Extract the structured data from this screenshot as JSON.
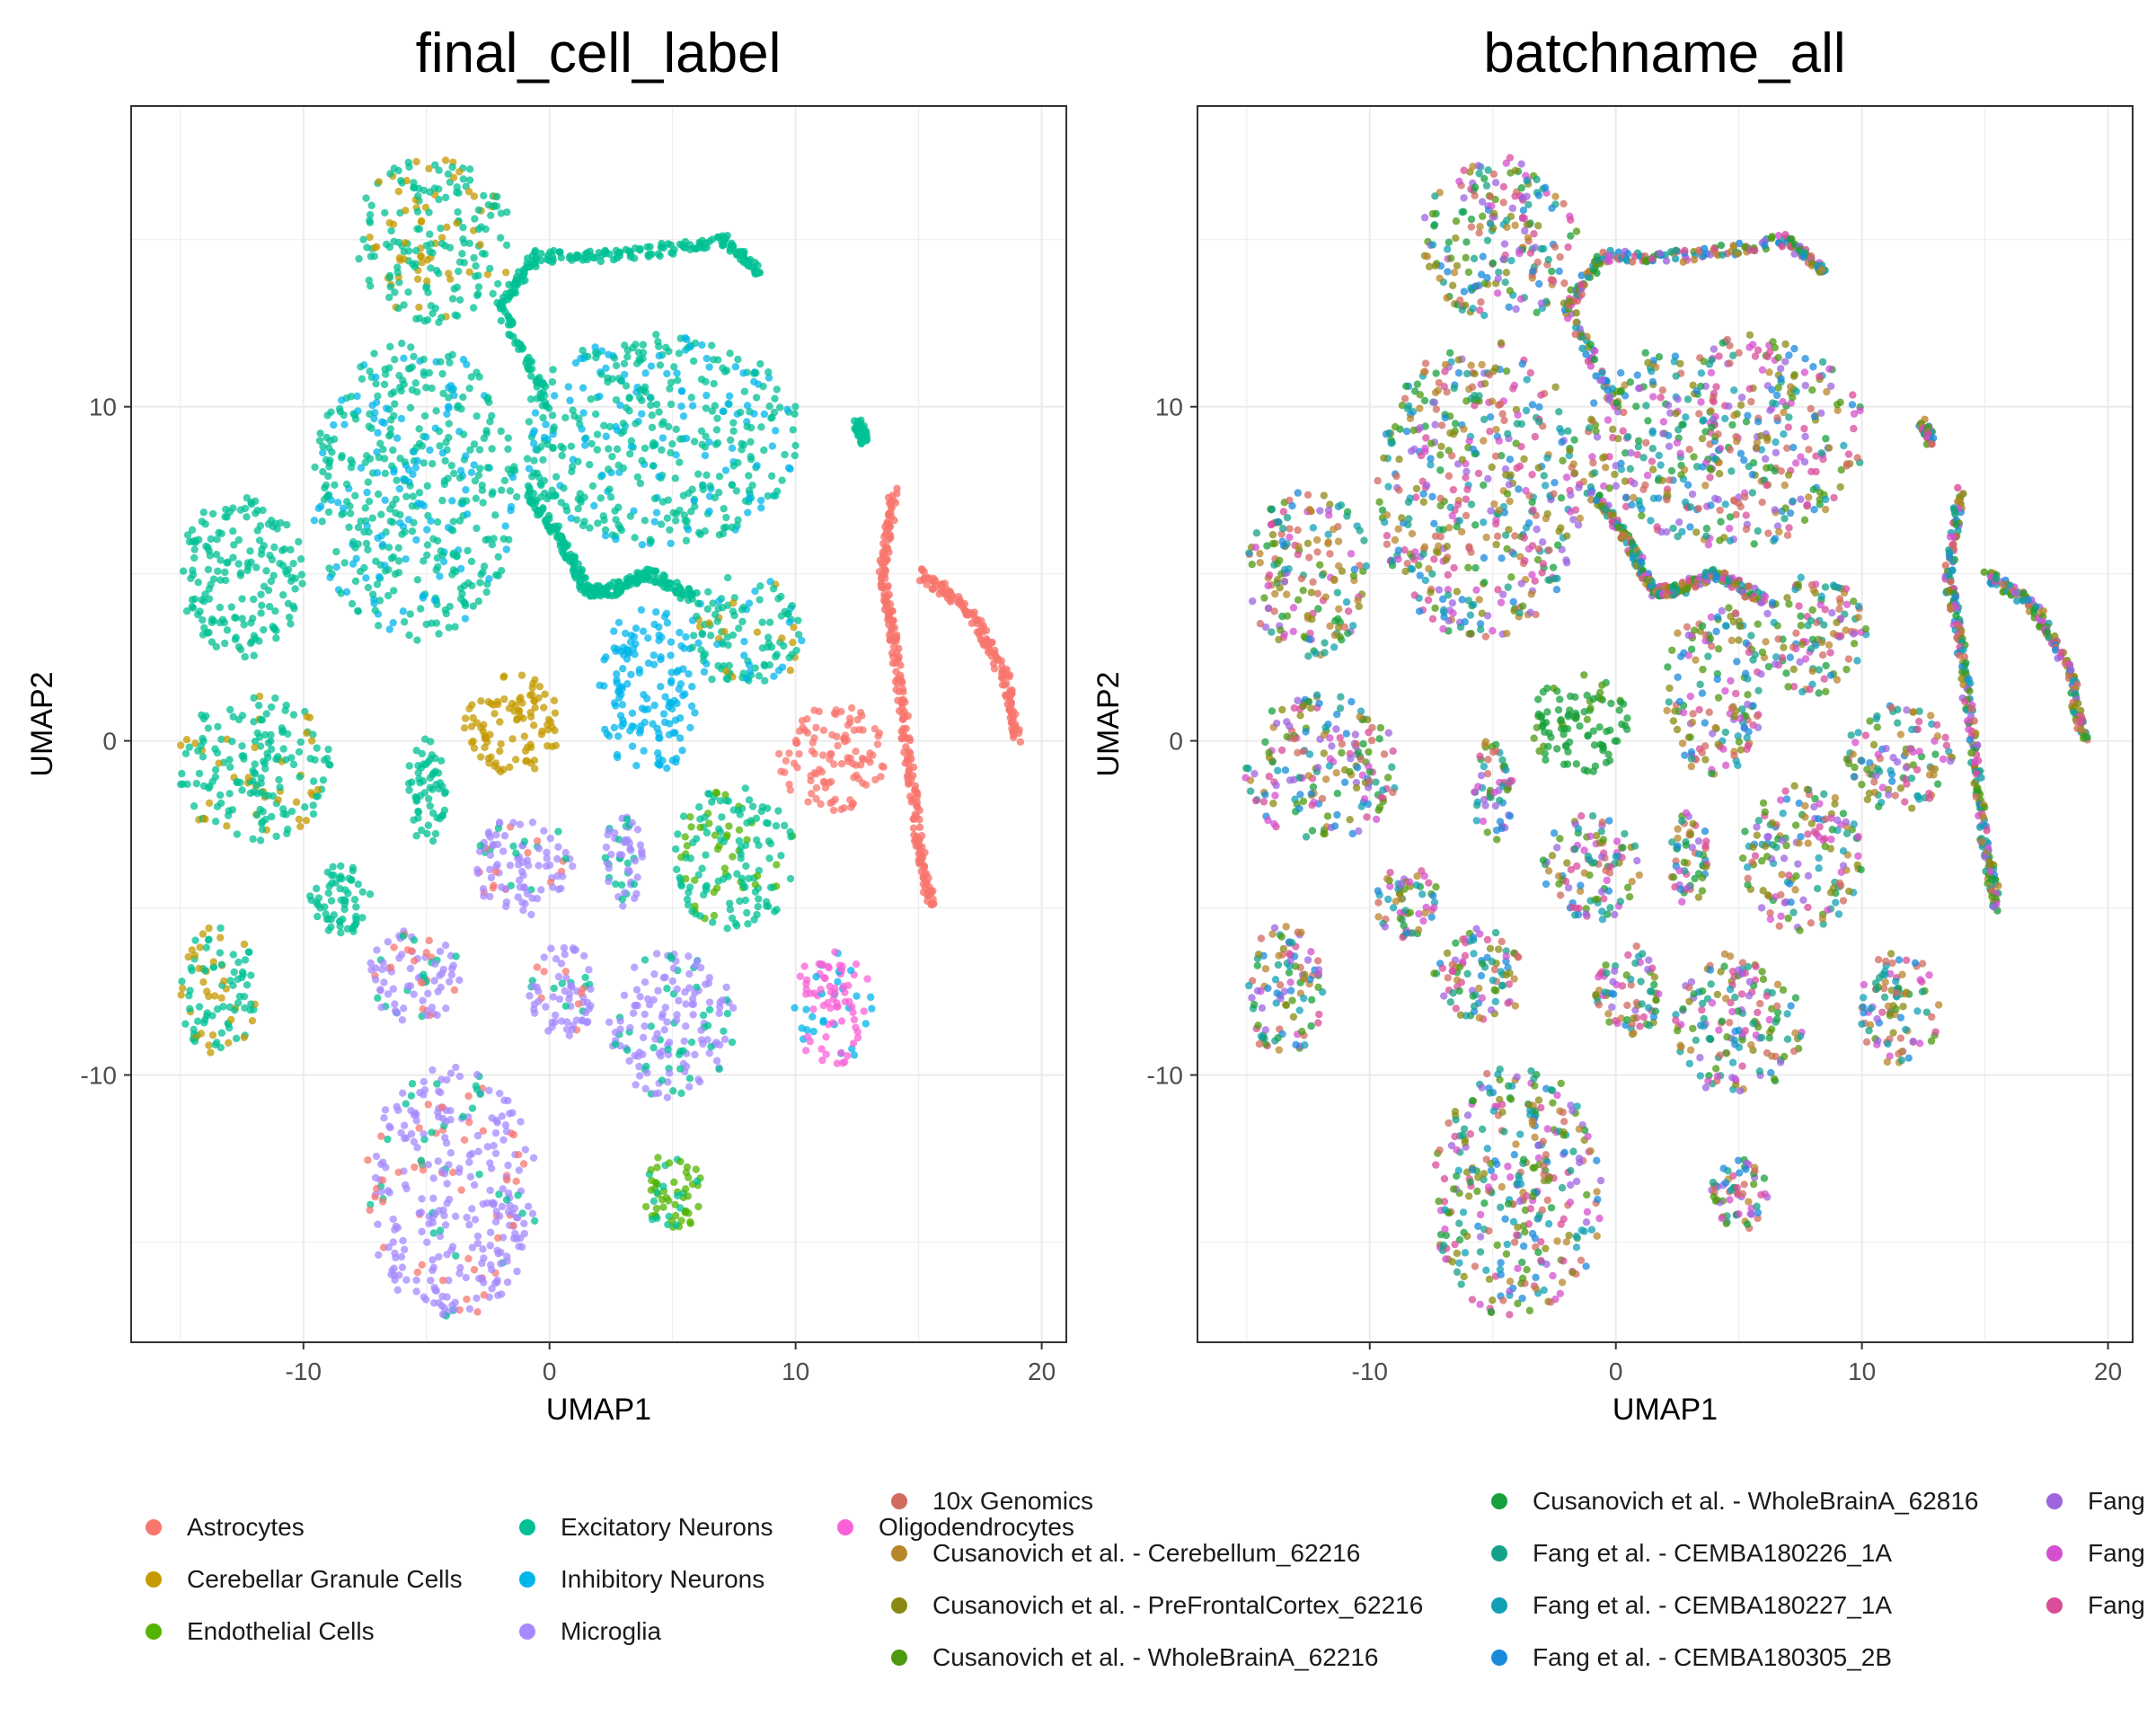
{
  "chart_data": [
    {
      "type": "scatter",
      "title": "final_cell_label",
      "xlabel": "UMAP1",
      "ylabel": "UMAP2",
      "xlim": [
        -17,
        21
      ],
      "ylim": [
        -18,
        19
      ],
      "xticks": [
        "-10",
        "0",
        "10",
        "20"
      ],
      "yticks": [
        "-10",
        "0",
        "10"
      ],
      "grid": true,
      "legend_position": "bottom",
      "series": [
        {
          "name": "Astrocytes",
          "color": "#F8766D"
        },
        {
          "name": "Cerebellar Granule Cells",
          "color": "#C49A00"
        },
        {
          "name": "Endothelial Cells",
          "color": "#53B400"
        },
        {
          "name": "Excitatory Neurons",
          "color": "#00C094"
        },
        {
          "name": "Inhibitory Neurons",
          "color": "#00B6EB"
        },
        {
          "name": "Microglia",
          "color": "#A58AFF"
        },
        {
          "name": "Oligodendrocytes",
          "color": "#FB61D7"
        }
      ],
      "clusters": [
        {
          "x": -4.7,
          "y": 15,
          "rx": 3.2,
          "ry": 2.5,
          "label": "Excitatory Neurons",
          "mix": [
            "Cerebellar Granule Cells"
          ]
        },
        {
          "x": -5.5,
          "y": 7.5,
          "rx": 4.2,
          "ry": 4.5,
          "label": "Excitatory Neurons",
          "mix": [
            "Inhibitory Neurons"
          ]
        },
        {
          "x": 4.5,
          "y": 9,
          "rx": 5.8,
          "ry": 3.2,
          "label": "Excitatory Neurons",
          "mix": [
            "Inhibitory Neurons"
          ]
        },
        {
          "x": -12.5,
          "y": 5,
          "rx": 2.5,
          "ry": 2.5,
          "label": "Excitatory Neurons",
          "mix": []
        },
        {
          "x": -12,
          "y": -0.8,
          "rx": 3.2,
          "ry": 2.2,
          "label": "Excitatory Neurons",
          "mix": [
            "Cerebellar Granule Cells"
          ]
        },
        {
          "x": -1.5,
          "y": 0.5,
          "rx": 2,
          "ry": 1.5,
          "label": "Cerebellar Granule Cells",
          "mix": []
        },
        {
          "x": 4,
          "y": 1.5,
          "rx": 2,
          "ry": 2.6,
          "label": "Inhibitory Neurons",
          "mix": []
        },
        {
          "x": 8,
          "y": 3.2,
          "rx": 2.3,
          "ry": 1.8,
          "label": "Excitatory Neurons",
          "mix": [
            "Inhibitory Neurons",
            "Cerebellar Granule Cells"
          ]
        },
        {
          "x": 11.5,
          "y": -0.5,
          "rx": 2.2,
          "ry": 1.6,
          "label": "Astrocytes",
          "mix": []
        },
        {
          "x": -5,
          "y": -1.5,
          "rx": 0.8,
          "ry": 1.6,
          "label": "Excitatory Neurons",
          "mix": []
        },
        {
          "x": -1,
          "y": -3.8,
          "rx": 2,
          "ry": 1.6,
          "label": "Microglia",
          "mix": [
            "Excitatory Neurons",
            "Astrocytes"
          ]
        },
        {
          "x": 3,
          "y": -3.5,
          "rx": 0.8,
          "ry": 1.5,
          "label": "Microglia",
          "mix": [
            "Excitatory Neurons"
          ]
        },
        {
          "x": 7.5,
          "y": -3.5,
          "rx": 2.5,
          "ry": 2.2,
          "label": "Excitatory Neurons",
          "mix": [
            "Endothelial Cells"
          ]
        },
        {
          "x": -8.5,
          "y": -4.8,
          "rx": 1.3,
          "ry": 1.1,
          "label": "Excitatory Neurons",
          "mix": []
        },
        {
          "x": -5.5,
          "y": -7,
          "rx": 1.9,
          "ry": 1.4,
          "label": "Microglia",
          "mix": [
            "Astrocytes",
            "Excitatory Neurons"
          ]
        },
        {
          "x": -13.5,
          "y": -7.5,
          "rx": 1.6,
          "ry": 2,
          "label": "Excitatory Neurons",
          "mix": [
            "Cerebellar Granule Cells"
          ]
        },
        {
          "x": 0.5,
          "y": -7.5,
          "rx": 1.4,
          "ry": 1.4,
          "label": "Microglia",
          "mix": [
            "Astrocytes",
            "Excitatory Neurons"
          ]
        },
        {
          "x": 5,
          "y": -8.5,
          "rx": 2.6,
          "ry": 2.2,
          "label": "Microglia",
          "mix": [
            "Excitatory Neurons"
          ]
        },
        {
          "x": 11.5,
          "y": -8,
          "rx": 1.7,
          "ry": 1.7,
          "label": "Oligodendrocytes",
          "mix": [
            "Inhibitory Neurons"
          ]
        },
        {
          "x": -4,
          "y": -13.5,
          "rx": 3.5,
          "ry": 3.8,
          "label": "Microglia",
          "mix": [
            "Astrocytes",
            "Excitatory Neurons"
          ]
        },
        {
          "x": 5,
          "y": -13.5,
          "rx": 1.2,
          "ry": 1.2,
          "label": "Endothelial Cells",
          "mix": [
            "Excitatory Neurons"
          ]
        }
      ],
      "strands": [
        {
          "points": [
            [
              14,
              7.5
            ],
            [
              13.5,
              5
            ],
            [
              14,
              3
            ],
            [
              14.5,
              0
            ],
            [
              15,
              -3
            ],
            [
              15.5,
              -5
            ]
          ],
          "label": "Astrocytes"
        },
        {
          "points": [
            [
              15,
              5
            ],
            [
              17,
              4
            ],
            [
              18.5,
              2
            ],
            [
              19,
              0
            ]
          ],
          "label": "Astrocytes"
        },
        {
          "points": [
            [
              -1,
              7.5
            ],
            [
              0.5,
              6
            ],
            [
              1.5,
              4.5
            ],
            [
              2.5,
              4.5
            ],
            [
              4,
              5
            ],
            [
              6,
              4.2
            ]
          ],
          "label": "Excitatory Neurons"
        },
        {
          "points": [
            [
              0,
              10
            ],
            [
              -2,
              13
            ],
            [
              -0.5,
              14.5
            ],
            [
              3,
              14.5
            ],
            [
              7,
              15
            ],
            [
              8.5,
              14
            ]
          ],
          "label": "Excitatory Neurons"
        },
        {
          "points": [
            [
              12.5,
              9.5
            ],
            [
              12.8,
              9
            ]
          ],
          "label": "Excitatory Neurons"
        }
      ]
    },
    {
      "type": "scatter",
      "title": "batchname_all",
      "xlabel": "UMAP1",
      "ylabel": "UMAP2",
      "xlim": [
        -17,
        21
      ],
      "ylim": [
        -18,
        19
      ],
      "xticks": [
        "-10",
        "0",
        "10",
        "20"
      ],
      "yticks": [
        "-10",
        "0",
        "10"
      ],
      "grid": true,
      "legend_position": "bottom",
      "series": [
        {
          "name": "10x Genomics",
          "color": "#D16A5F"
        },
        {
          "name": "Cusanovich et al. - Cerebellum_62216",
          "color": "#B8862B"
        },
        {
          "name": "Cusanovich et al. - PreFrontalCortex_62216",
          "color": "#8A8A12"
        },
        {
          "name": "Cusanovich et al. - WholeBrainA_62216",
          "color": "#4D9A10"
        },
        {
          "name": "Cusanovich et al. - WholeBrainA_62816",
          "color": "#17A03C"
        },
        {
          "name": "Fang et al. - CEMBA180226_1A",
          "color": "#14A28A"
        },
        {
          "name": "Fang et al. - CEMBA180227_1A",
          "color": "#12A0B4"
        },
        {
          "name": "Fang et al. - CEMBA180305_2B",
          "color": "#1A8ADB"
        },
        {
          "name": "Fang",
          "color": "#9E64E0"
        },
        {
          "name": "Fang",
          "color": "#D44FCF"
        },
        {
          "name": "Fang",
          "color": "#D84C99"
        }
      ]
    }
  ]
}
